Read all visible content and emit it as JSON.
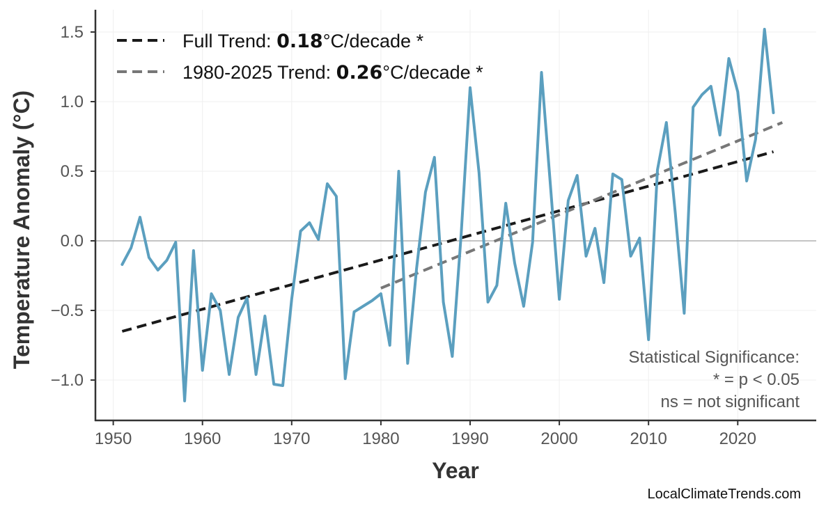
{
  "chart_data": {
    "type": "line",
    "xlabel": "Year",
    "ylabel": "Temperature Anomaly (°C)",
    "xlim": [
      1948,
      2028.8
    ],
    "ylim": [
      -1.29,
      1.66
    ],
    "xticks": [
      1950,
      1960,
      1970,
      1980,
      1990,
      2000,
      2010,
      2020
    ],
    "xtick_labels": [
      "1950",
      "1960",
      "1970",
      "1980",
      "1990",
      "2000",
      "2010",
      "2020"
    ],
    "yticks": [
      -1.0,
      -0.5,
      0.0,
      0.5,
      1.0,
      1.5
    ],
    "ytick_labels": [
      "−1.0",
      "−0.5",
      "0.0",
      "0.5",
      "1.0",
      "1.5"
    ],
    "grid": true,
    "zero_line": true,
    "series": [
      {
        "color": "#5b9fbf",
        "x": [
          1951,
          1952,
          1953,
          1954,
          1955,
          1956,
          1957,
          1958,
          1959,
          1960,
          1961,
          1962,
          1963,
          1964,
          1965,
          1966,
          1967,
          1968,
          1969,
          1970,
          1971,
          1972,
          1973,
          1974,
          1975,
          1976,
          1977,
          1978,
          1979,
          1980,
          1981,
          1982,
          1983,
          1984,
          1985,
          1986,
          1987,
          1988,
          1989,
          1990,
          1991,
          1992,
          1993,
          1994,
          1995,
          1996,
          1997,
          1998,
          1999,
          2000,
          2001,
          2002,
          2003,
          2004,
          2005,
          2006,
          2007,
          2008,
          2009,
          2010,
          2011,
          2012,
          2013,
          2014,
          2015,
          2016,
          2017,
          2018,
          2019,
          2020,
          2021,
          2022,
          2023,
          2024
        ],
        "y": [
          -0.17,
          -0.05,
          0.17,
          -0.12,
          -0.21,
          -0.14,
          -0.01,
          -1.15,
          -0.07,
          -0.93,
          -0.38,
          -0.5,
          -0.96,
          -0.55,
          -0.41,
          -0.96,
          -0.54,
          -1.03,
          -1.04,
          -0.42,
          0.07,
          0.13,
          0.01,
          0.41,
          0.32,
          -0.99,
          -0.51,
          -0.47,
          -0.43,
          -0.38,
          -0.75,
          0.5,
          -0.88,
          -0.2,
          0.35,
          0.6,
          -0.44,
          -0.83,
          0.05,
          1.1,
          0.49,
          -0.44,
          -0.32,
          0.27,
          -0.16,
          -0.47,
          -0.01,
          1.21,
          0.4,
          -0.42,
          0.29,
          0.47,
          -0.11,
          0.09,
          -0.3,
          0.48,
          0.44,
          -0.11,
          0.02,
          -0.71,
          0.51,
          0.85,
          0.2,
          -0.52,
          0.96,
          1.05,
          1.11,
          0.76,
          1.31,
          1.07,
          0.43,
          0.73,
          1.52,
          0.92
        ]
      }
    ],
    "trend_lines": [
      {
        "name": "Full Trend",
        "color": "#1a1a1a",
        "x": [
          1951,
          2024
        ],
        "y": [
          -0.65,
          0.64
        ]
      },
      {
        "name": "1980-2025 Trend",
        "color": "#777777",
        "x": [
          1980,
          2025
        ],
        "y": [
          -0.34,
          0.85
        ]
      }
    ],
    "legend": {
      "placement": "top-left",
      "entries": [
        {
          "prefix": "Full Trend: ",
          "value": "0.18",
          "suffix": "°C/decade *"
        },
        {
          "prefix": "1980-2025 Trend: ",
          "value": "0.26",
          "suffix": "°C/decade *"
        }
      ]
    },
    "annotation": [
      "Statistical Significance:",
      "* = p < 0.05",
      "ns = not significant"
    ],
    "credit": "LocalClimateTrends.com"
  }
}
